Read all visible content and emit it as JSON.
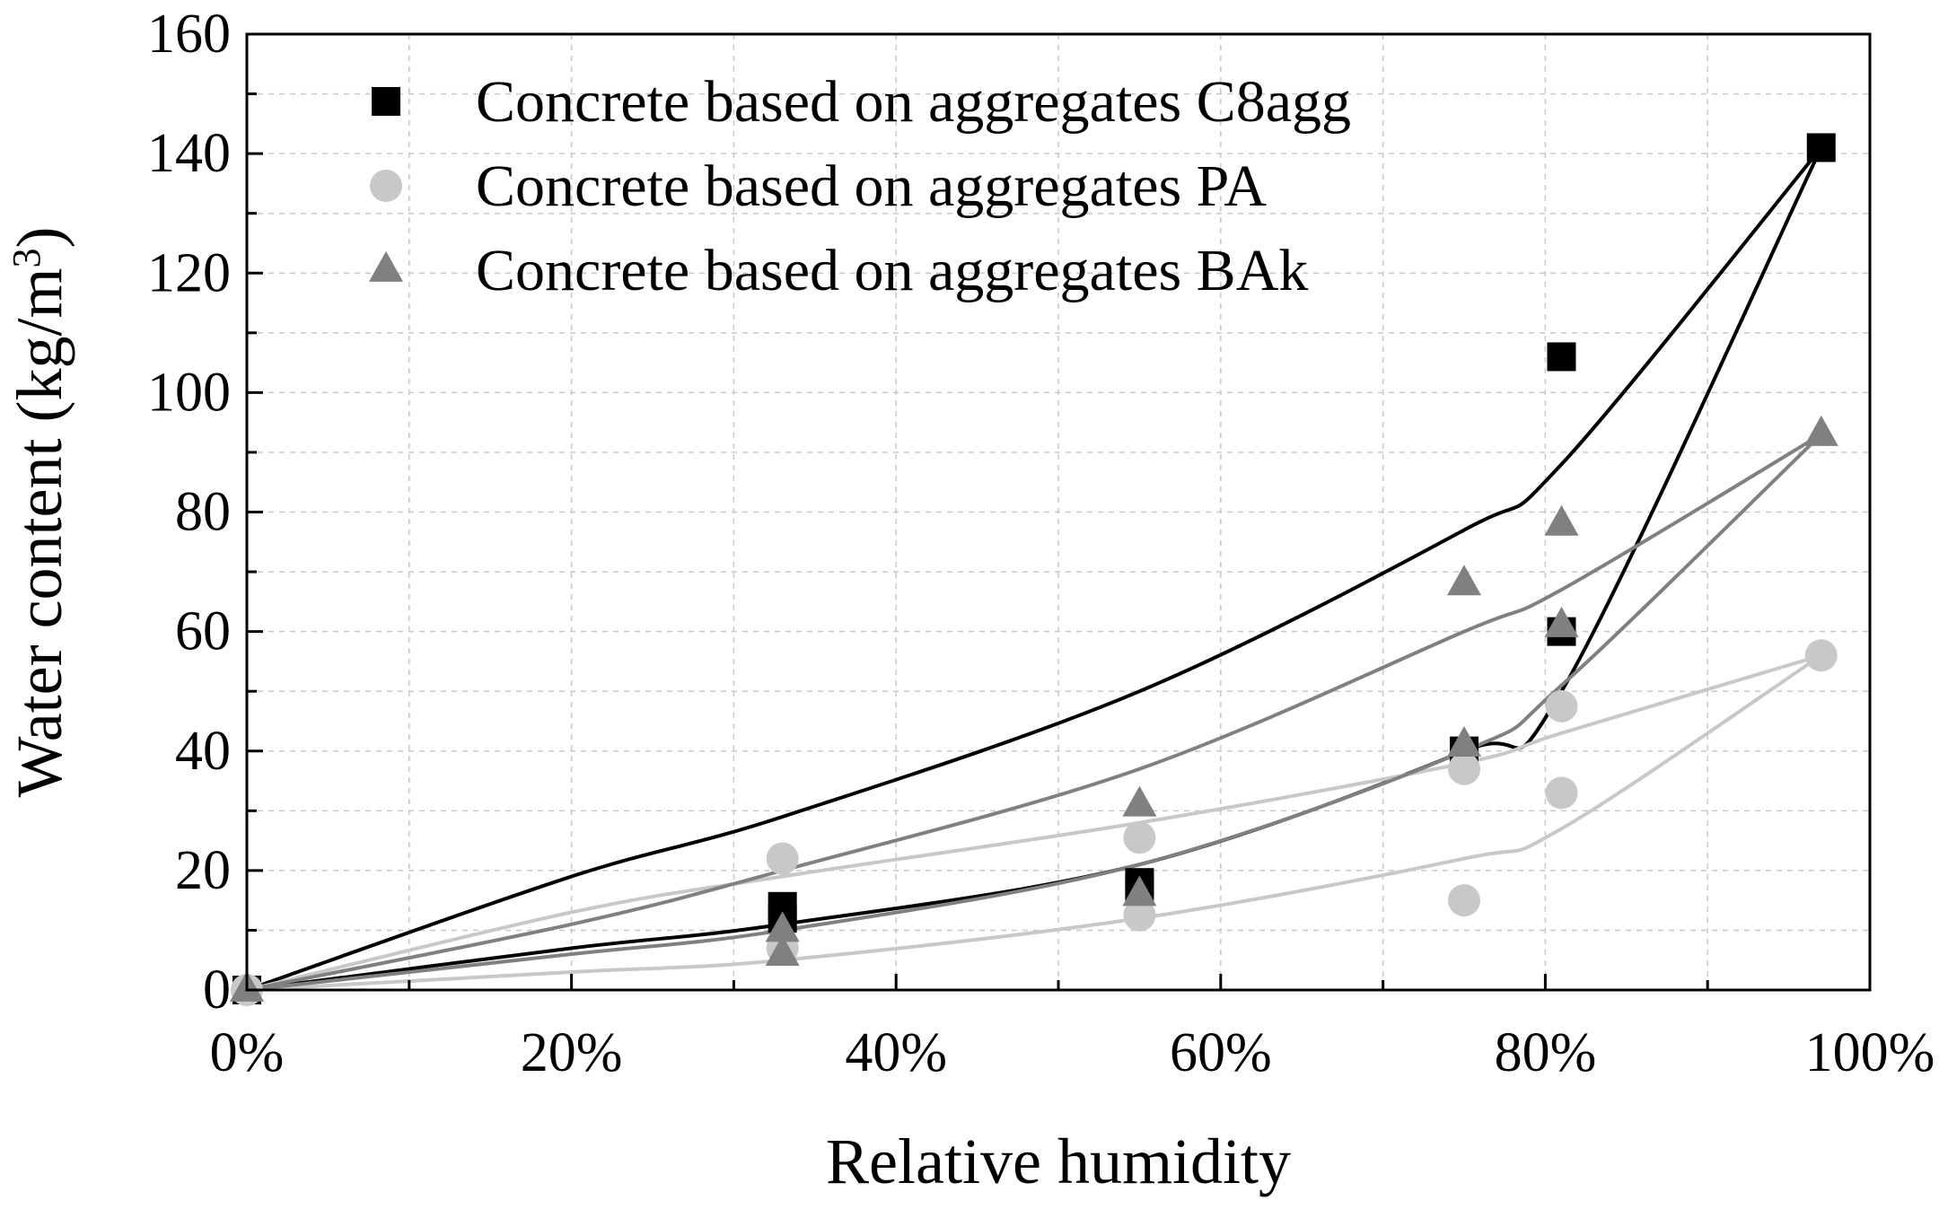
{
  "chart_data": {
    "type": "scatter",
    "xlabel": "Relative humidity",
    "ylabel": "Water content (kg/m",
    "ylabel_sup": "3",
    "ylabel_close": ")",
    "xlim": [
      0,
      100
    ],
    "ylim": [
      0,
      160
    ],
    "x_ticks": [
      0,
      20,
      40,
      60,
      80,
      100
    ],
    "x_tick_labels": [
      "0%",
      "20%",
      "40%",
      "60%",
      "80%",
      "100%"
    ],
    "x_minor_step": 10,
    "y_ticks": [
      0,
      20,
      40,
      60,
      80,
      100,
      120,
      140,
      160
    ],
    "y_tick_labels": [
      "0",
      "20",
      "40",
      "60",
      "80",
      "100",
      "120",
      "140",
      "160"
    ],
    "y_minor_step": 10,
    "grid": true,
    "legend_position": "top-left",
    "series": [
      {
        "name": "Concrete based on aggregates C8agg",
        "marker": "square",
        "color": "#000000",
        "x": [
          0,
          33,
          55,
          75,
          81,
          97,
          0,
          33,
          55,
          75,
          81
        ],
        "y": [
          0,
          14,
          18,
          40,
          60,
          141,
          0,
          12,
          17,
          40,
          106
        ],
        "sorption_curve": {
          "x": [
            0,
            20,
            33,
            55,
            75,
            81,
            97
          ],
          "y": [
            0,
            7,
            11,
            21,
            40,
            50,
            141
          ]
        },
        "desorption_curve": {
          "x": [
            0,
            20,
            33,
            55,
            75,
            81,
            97
          ],
          "y": [
            0,
            19,
            29,
            50,
            77,
            88,
            141
          ]
        }
      },
      {
        "name": "Concrete based on aggregates PA",
        "marker": "circle",
        "color": "#c8c8c8",
        "x": [
          0,
          33,
          55,
          75,
          81,
          97,
          33,
          55,
          75,
          81
        ],
        "y": [
          0,
          22,
          25.5,
          37,
          47.5,
          56,
          7,
          12.5,
          15,
          33
        ],
        "sorption_curve": {
          "x": [
            0,
            20,
            33,
            55,
            75,
            81,
            97
          ],
          "y": [
            0,
            3,
            5,
            12,
            22,
            27,
            56
          ]
        },
        "desorption_curve": {
          "x": [
            0,
            20,
            33,
            55,
            75,
            81,
            97
          ],
          "y": [
            0,
            13,
            19,
            28,
            38,
            43,
            56
          ]
        }
      },
      {
        "name": "Concrete based on aggregates BAk",
        "marker": "triangle",
        "color": "#808080",
        "x": [
          0,
          33,
          55,
          75,
          81,
          97,
          33,
          55,
          75,
          81
        ],
        "y": [
          0,
          10,
          16,
          41,
          61,
          93,
          6,
          31,
          68,
          78
        ],
        "sorption_curve": {
          "x": [
            0,
            20,
            33,
            55,
            75,
            81,
            97
          ],
          "y": [
            0,
            6,
            10,
            21,
            40,
            51,
            93
          ]
        },
        "desorption_curve": {
          "x": [
            0,
            20,
            33,
            55,
            75,
            81,
            97
          ],
          "y": [
            0,
            11,
            20,
            37,
            60,
            67,
            93
          ]
        }
      }
    ]
  }
}
